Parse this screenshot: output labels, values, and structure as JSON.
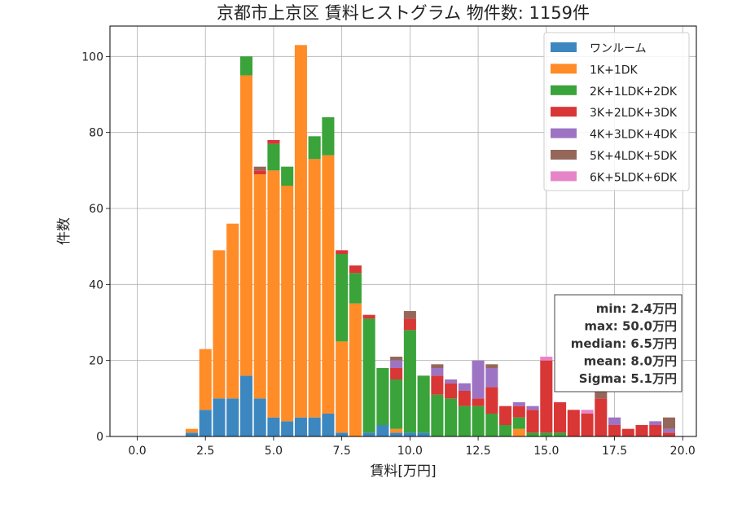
{
  "chart_data": {
    "type": "bar",
    "stacked": true,
    "title": "京都市上京区 賃料ヒストグラム 物件数: 1159件",
    "xlabel": "賃料[万円]",
    "ylabel": "件数",
    "xlim": [
      -1.0,
      20.5
    ],
    "ylim": [
      0,
      108
    ],
    "bin_width": 0.5,
    "xticks": [
      0.0,
      2.5,
      5.0,
      7.5,
      10.0,
      12.5,
      15.0,
      17.5,
      20.0
    ],
    "xtick_labels": [
      "0.0",
      "2.5",
      "5.0",
      "7.5",
      "10.0",
      "12.5",
      "15.0",
      "17.5",
      "20.0"
    ],
    "yticks": [
      0,
      20,
      40,
      60,
      80,
      100
    ],
    "ytick_labels": [
      "0",
      "20",
      "40",
      "60",
      "80",
      "100"
    ],
    "grid": true,
    "legend_position": "top-right",
    "x": [
      2.0,
      2.5,
      3.0,
      3.5,
      4.0,
      4.5,
      5.0,
      5.5,
      6.0,
      6.5,
      7.0,
      7.5,
      8.0,
      8.5,
      9.0,
      9.5,
      10.0,
      10.5,
      11.0,
      11.5,
      12.0,
      12.5,
      13.0,
      13.5,
      14.0,
      14.5,
      15.0,
      15.5,
      16.0,
      16.5,
      17.0,
      17.5,
      18.0,
      18.5,
      19.0,
      19.5
    ],
    "series": [
      {
        "name": "ワンルーム",
        "color": "#3c87c0",
        "values": [
          1,
          7,
          10,
          10,
          16,
          10,
          5,
          4,
          5,
          5,
          6,
          1,
          0,
          1,
          3,
          1,
          1,
          1,
          0,
          0,
          0,
          0,
          0,
          0,
          0,
          0,
          0,
          0,
          0,
          0,
          0,
          0,
          0,
          0,
          0,
          0
        ]
      },
      {
        "name": "1K+1DK",
        "color": "#ff8c27",
        "values": [
          1,
          16,
          39,
          46,
          79,
          59,
          65,
          62,
          98,
          68,
          68,
          24,
          35,
          0,
          0,
          1,
          0,
          0,
          0,
          0,
          0,
          0,
          0,
          0,
          2,
          0,
          0,
          0,
          0,
          0,
          0,
          0,
          0,
          0,
          0,
          0
        ]
      },
      {
        "name": "2K+1LDK+2DK",
        "color": "#3aa33a",
        "values": [
          0,
          0,
          0,
          0,
          5,
          0,
          7,
          5,
          0,
          6,
          10,
          23,
          8,
          30,
          15,
          13,
          27,
          15,
          11,
          10,
          8,
          8,
          6,
          3,
          3,
          1,
          1,
          1,
          0,
          0,
          0,
          0,
          0,
          0,
          0,
          0
        ]
      },
      {
        "name": "3K+2LDK+3DK",
        "color": "#d93636",
        "values": [
          0,
          0,
          0,
          0,
          0,
          1,
          1,
          0,
          0,
          0,
          0,
          1,
          2,
          1,
          0,
          3,
          3,
          0,
          5,
          4,
          4,
          2,
          7,
          5,
          3,
          6,
          19,
          8,
          7,
          6,
          10,
          3,
          2,
          3,
          3,
          1
        ]
      },
      {
        "name": "4K+3LDK+4DK",
        "color": "#9d74c4",
        "values": [
          0,
          0,
          0,
          0,
          0,
          0,
          0,
          0,
          0,
          0,
          0,
          0,
          0,
          0,
          0,
          2,
          0,
          0,
          2,
          1,
          2,
          10,
          5,
          0,
          1,
          1,
          0,
          0,
          0,
          0,
          0,
          2,
          0,
          0,
          1,
          1
        ]
      },
      {
        "name": "5K+4LDK+5DK",
        "color": "#95675a",
        "values": [
          0,
          0,
          0,
          0,
          0,
          1,
          0,
          0,
          0,
          0,
          0,
          0,
          0,
          0,
          0,
          1,
          2,
          0,
          1,
          0,
          0,
          0,
          1,
          0,
          0,
          0,
          0,
          0,
          0,
          0,
          2,
          0,
          0,
          0,
          0,
          3
        ]
      },
      {
        "name": "6K+5LDK+6DK",
        "color": "#e684c8",
        "values": [
          0,
          0,
          0,
          0,
          0,
          0,
          0,
          0,
          0,
          0,
          0,
          0,
          0,
          0,
          0,
          0,
          0,
          0,
          0,
          0,
          0,
          0,
          0,
          0,
          0,
          0,
          1,
          0,
          0,
          1,
          0,
          0,
          0,
          0,
          0,
          0
        ]
      }
    ],
    "annotation": [
      "min: 2.4万円",
      "max: 50.0万円",
      "median: 6.5万円",
      "mean: 8.0万円",
      "Sigma: 5.1万円"
    ]
  }
}
